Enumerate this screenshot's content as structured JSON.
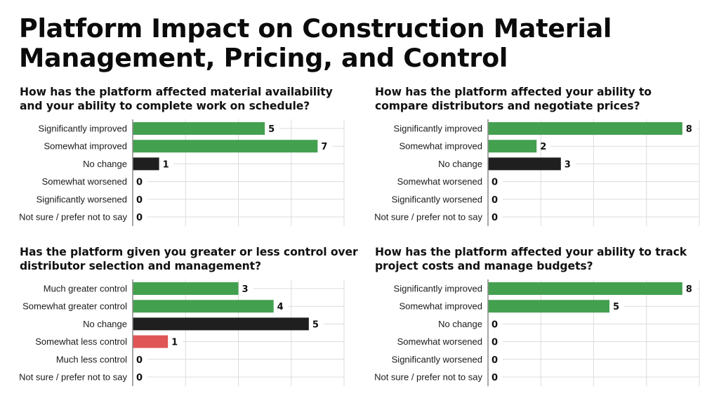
{
  "title": {
    "line1": "Platform Impact on Construction Material",
    "line2": "Management, Pricing, and Control"
  },
  "colors": {
    "positive": "#43a04f",
    "neutral": "#1f1f1f",
    "negative": "#e05555",
    "grid": "#dcdcdc",
    "axis": "#8a8a8a"
  },
  "chart_data": [
    {
      "type": "bar",
      "orientation": "horizontal",
      "title_lines": [
        "How has the platform affected material availability",
        "and your ability to complete work on schedule?"
      ],
      "categories": [
        "Significantly improved",
        "Somewhat improved",
        "No change",
        "Somewhat worsened",
        "Significantly worsened",
        "Not sure / prefer not to say"
      ],
      "values": [
        5,
        7,
        1,
        0,
        0,
        0
      ],
      "sentiment": [
        "positive",
        "positive",
        "neutral",
        "neutral",
        "neutral",
        "neutral"
      ],
      "xlim": [
        0,
        8
      ],
      "grid": true,
      "xlabel": "",
      "ylabel": ""
    },
    {
      "type": "bar",
      "orientation": "horizontal",
      "title_lines": [
        "How has the platform affected your ability to",
        "compare distributors and negotiate prices?"
      ],
      "categories": [
        "Significantly improved",
        "Somewhat improved",
        "No change",
        "Somewhat worsened",
        "Significantly worsened",
        "Not sure / prefer not to say"
      ],
      "values": [
        8,
        2,
        3,
        0,
        0,
        0
      ],
      "sentiment": [
        "positive",
        "positive",
        "neutral",
        "neutral",
        "neutral",
        "neutral"
      ],
      "xlim": [
        0,
        8.7
      ],
      "grid": true,
      "xlabel": "",
      "ylabel": ""
    },
    {
      "type": "bar",
      "orientation": "horizontal",
      "title_lines": [
        "Has the platform given you greater or less control over",
        "distributor selection and management?"
      ],
      "categories": [
        "Much greater control",
        "Somewhat greater control",
        "No change",
        "Somewhat less control",
        "Much less control",
        "Not sure / prefer not to say"
      ],
      "values": [
        3,
        4,
        5,
        1,
        0,
        0
      ],
      "sentiment": [
        "positive",
        "positive",
        "neutral",
        "negative",
        "neutral",
        "neutral"
      ],
      "xlim": [
        0,
        6
      ],
      "grid": true,
      "xlabel": "",
      "ylabel": ""
    },
    {
      "type": "bar",
      "orientation": "horizontal",
      "title_lines": [
        "How has the platform affected your ability to track",
        "project costs and manage budgets?"
      ],
      "categories": [
        "Significantly improved",
        "Somewhat improved",
        "No change",
        "Somewhat worsened",
        "Significantly worsened",
        "Not sure / prefer not to say"
      ],
      "values": [
        8,
        5,
        0,
        0,
        0,
        0
      ],
      "sentiment": [
        "positive",
        "positive",
        "neutral",
        "neutral",
        "neutral",
        "neutral"
      ],
      "xlim": [
        0,
        8.7
      ],
      "grid": true,
      "xlabel": "",
      "ylabel": ""
    }
  ]
}
